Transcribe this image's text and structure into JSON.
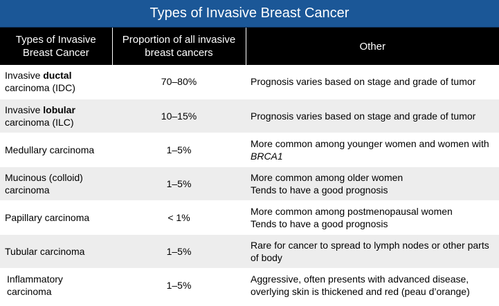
{
  "title": "Types of Invasive Breast Cancer",
  "headers": {
    "type": "Types of Invasive Breast Cancer",
    "proportion": "Proportion of all invasive breast cancers",
    "other": "Other"
  },
  "rows": [
    {
      "type_prefix": "Invasive ",
      "type_bold": "ductal",
      "type_suffix": "carcinoma (IDC)",
      "proportion": "70–80%",
      "other_line1": "Prognosis varies based on stage and grade of tumor",
      "other_line2": ""
    },
    {
      "type_prefix": "Invasive ",
      "type_bold": "lobular",
      "type_suffix": "carcinoma (ILC)",
      "proportion": "10–15%",
      "other_line1": "Prognosis varies based on stage and grade of tumor",
      "other_line2": ""
    },
    {
      "type": "Medullary carcinoma",
      "proportion": "1–5%",
      "other_line1": "More common among younger women and women with ",
      "other_italic": "BRCA1"
    },
    {
      "type": "Mucinous (colloid) carcinoma",
      "proportion": "1–5%",
      "other_line1": "More common among older women",
      "other_line2": "Tends to have a good prognosis"
    },
    {
      "type": "Papillary carcinoma",
      "proportion": "< 1%",
      "other_line1": "More common among postmenopausal women",
      "other_line2": "Tends to have a good prognosis"
    },
    {
      "type": "Tubular carcinoma",
      "proportion": "1–5%",
      "other_line1": "Rare for cancer to spread to lymph nodes or other parts of body",
      "other_line2": ""
    },
    {
      "type": "Inflammatory carcinoma",
      "proportion": "1–5%",
      "other_line1": "Aggressive, often presents with advanced disease, overlying skin is thickened and red (peau d’orange)",
      "other_line2": ""
    }
  ]
}
